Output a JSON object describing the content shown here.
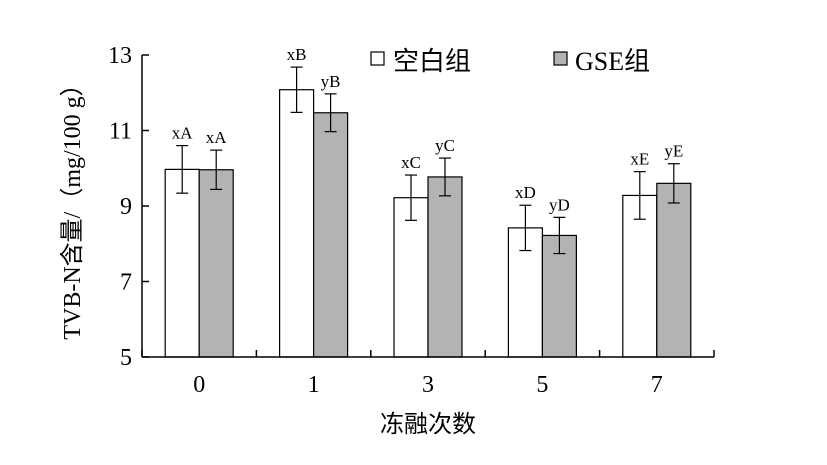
{
  "chart_data": {
    "type": "bar",
    "categories": [
      "0",
      "1",
      "3",
      "5",
      "7"
    ],
    "xlabel": "冻融次数",
    "ylabel": "TVB-N含量/（mg/100 g）",
    "ylim": [
      5,
      13
    ],
    "yticks": [
      "5",
      "7",
      "9",
      "11",
      "13"
    ],
    "grid": false,
    "legend_position": "top-right",
    "series": [
      {
        "name": "空白组",
        "color": "#ffffff",
        "values": [
          9.97,
          12.08,
          9.22,
          8.42,
          9.28
        ],
        "errors": [
          0.63,
          0.6,
          0.6,
          0.6,
          0.63
        ],
        "labels": [
          "xA",
          "xB",
          "xC",
          "xD",
          "xE"
        ]
      },
      {
        "name": "GSE组",
        "color": "#b3b3b3",
        "values": [
          9.96,
          11.47,
          9.77,
          8.22,
          9.6
        ],
        "errors": [
          0.52,
          0.5,
          0.5,
          0.48,
          0.52
        ],
        "labels": [
          "xA",
          "yB",
          "yC",
          "yD",
          "yE"
        ]
      }
    ]
  }
}
